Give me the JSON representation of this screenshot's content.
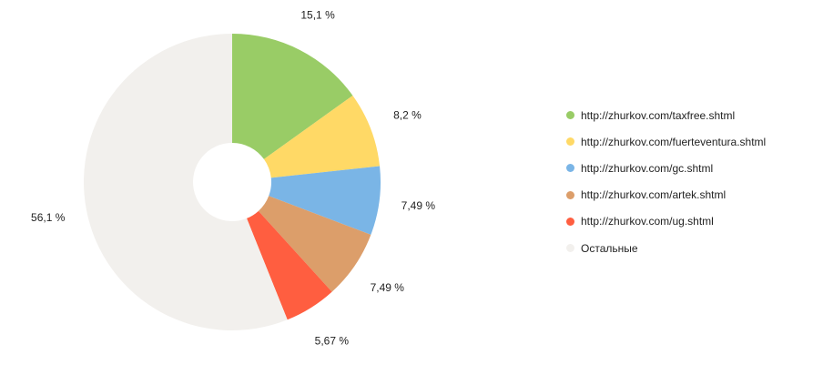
{
  "chart_data": {
    "type": "pie",
    "donut": true,
    "legend_position": "right",
    "slices": [
      {
        "name": "http://zhurkov.com/taxfree.shtml",
        "value": 15.1,
        "label": "15,1 %",
        "color": "#99cc66"
      },
      {
        "name": "http://zhurkov.com/fuerteventura.shtml",
        "value": 8.2,
        "label": "8,2 %",
        "color": "#ffd966"
      },
      {
        "name": "http://zhurkov.com/gc.shtml",
        "value": 7.49,
        "label": "7,49 %",
        "color": "#7ab5e6"
      },
      {
        "name": "http://zhurkov.com/artek.shtml",
        "value": 7.49,
        "label": "7,49 %",
        "color": "#dc9e6a"
      },
      {
        "name": "http://zhurkov.com/ug.shtml",
        "value": 5.67,
        "label": "5,67 %",
        "color": "#ff5e40"
      },
      {
        "name": "Остальные",
        "value": 56.1,
        "label": "56,1 %",
        "color": "#f2f0ed"
      }
    ]
  }
}
